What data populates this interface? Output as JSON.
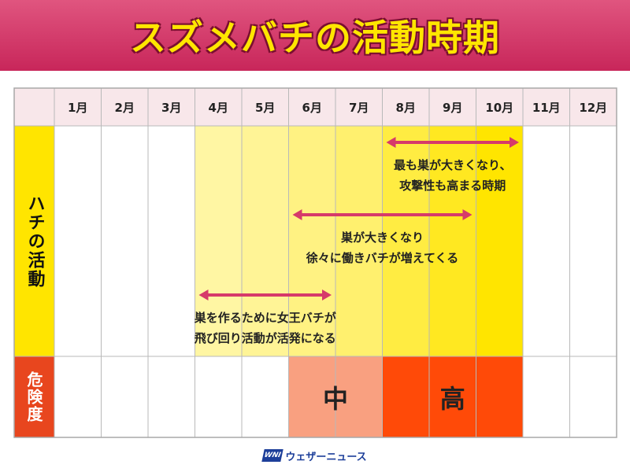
{
  "title": "スズメバチの活動時期",
  "chart_data": {
    "type": "table",
    "months": [
      "1月",
      "2月",
      "3月",
      "4月",
      "5月",
      "6月",
      "7月",
      "8月",
      "9月",
      "10月",
      "11月",
      "12月"
    ],
    "rows": [
      {
        "label": "ハチの活動",
        "color": "#ffe500"
      },
      {
        "label": "危険度",
        "color": "#e8461e"
      }
    ],
    "activity_intensity": [
      0,
      0,
      0,
      0.25,
      0.3,
      0.4,
      0.5,
      0.7,
      0.85,
      1,
      0,
      0
    ],
    "periods": [
      {
        "start_month": 8,
        "end_month": 10,
        "lines": [
          "最も巣が大きくなり、",
          "攻撃性も高まる時期"
        ]
      },
      {
        "start_month": 6,
        "end_month": 9,
        "lines": [
          "巣が大きくなり",
          "徐々に働きバチが増えてくる"
        ]
      },
      {
        "start_month": 4,
        "end_month": 6,
        "lines": [
          "巣を作るために女王バチが",
          "飛び回り活動が活発になる"
        ]
      }
    ],
    "danger_levels": [
      {
        "start_month": 6,
        "end_month": 7,
        "label": "中",
        "color": "#f9a080"
      },
      {
        "start_month": 8,
        "end_month": 10,
        "label": "高",
        "color": "#ff4a08"
      }
    ],
    "arrow_color": "#d63a6a"
  },
  "footer": {
    "logo_mark": "WNI",
    "logo_text": "ウェザーニュース"
  }
}
